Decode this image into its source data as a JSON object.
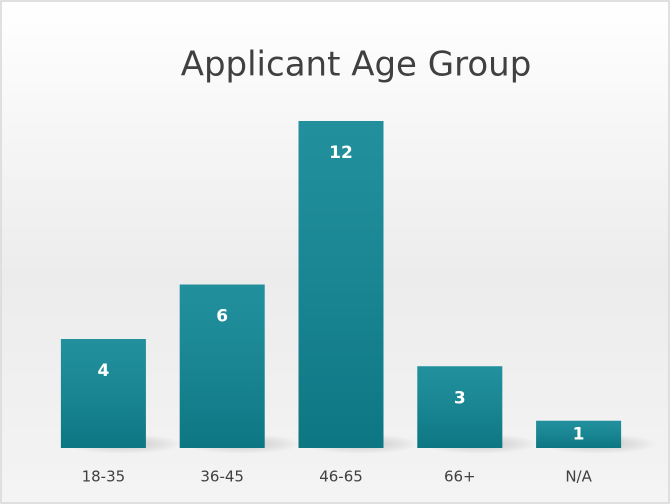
{
  "chart_data": {
    "type": "bar",
    "title": "Applicant Age Group",
    "categories": [
      "18-35",
      "36-45",
      "46-65",
      "66+",
      "N/A"
    ],
    "values": [
      4,
      6,
      12,
      3,
      1
    ],
    "color": "#0e8694"
  }
}
